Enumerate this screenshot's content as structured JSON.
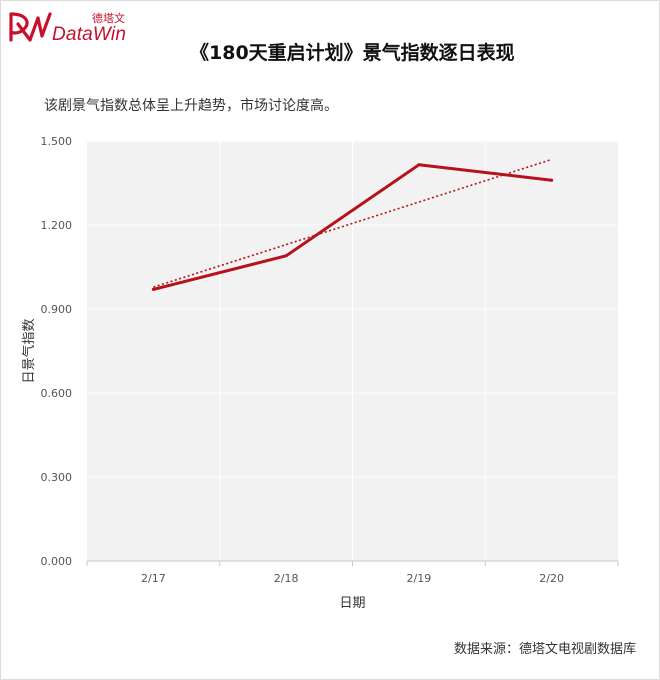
{
  "brand": {
    "name_cn": "德塔文",
    "name_en": "DataWin",
    "color": "#c8102e"
  },
  "title": "《180天重启计划》景气指数逐日表现",
  "subtitle": "该剧景气指数总体呈上升趋势，市场讨论度高。",
  "source": "数据来源：德塔文电视剧数据库",
  "chart_data": {
    "type": "line",
    "categories": [
      "2/17",
      "2/18",
      "2/19",
      "2/20"
    ],
    "series": [
      {
        "values": [
          0.97,
          1.09,
          1.415,
          1.36
        ],
        "color": "#b5121b"
      }
    ],
    "trendline": {
      "style": "dotted",
      "color": "#b5121b",
      "values": [
        0.978,
        1.13,
        1.282,
        1.434
      ]
    },
    "xlabel": "日期",
    "ylabel": "日景气指数",
    "ylim": [
      0,
      1.5
    ],
    "yticks": [
      "0.000",
      "0.300",
      "0.600",
      "0.900",
      "1.200",
      "1.500"
    ],
    "plot_background": "#f2f2f2",
    "grid": true
  }
}
